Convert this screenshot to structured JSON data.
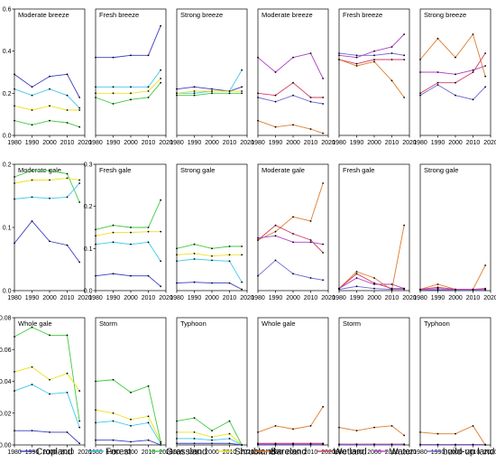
{
  "figure": {
    "x_ticks": [
      "1980",
      "1990",
      "2000",
      "2010",
      "2020"
    ],
    "colors": {
      "Cropland": "#3b3bc4",
      "Forest": "#3cc8f0",
      "Grassland": "#3ecb3e",
      "Shrubland": "#f0e020",
      "Bareland": "#e07b2a",
      "Wetland": "#d43c60",
      "Water": "#b040c8",
      "build-up land": "#6a6adc"
    },
    "legend": [
      {
        "label": "Cropland",
        "color": "#3b3bc4"
      },
      {
        "label": "Forest",
        "color": "#3cc8f0"
      },
      {
        "label": "Grassland",
        "color": "#3ecb3e"
      },
      {
        "label": "Shrubland",
        "color": "#f0e020"
      },
      {
        "label": "Bareland",
        "color": "#e07b2a"
      },
      {
        "label": "Wetland",
        "color": "#d43c60"
      },
      {
        "label": "Water",
        "color": "#b040c8"
      },
      {
        "label": "build-up land",
        "color": "#6a6adc"
      }
    ]
  },
  "chart_data": [
    {
      "type": "line",
      "title": "Moderate breeze",
      "ylim": [
        0,
        0.6
      ],
      "yticks": [
        "0.0",
        "0.2",
        "0.4",
        "0.6"
      ],
      "show_yticks": true,
      "x": [
        1980,
        1990,
        2000,
        2010,
        2017
      ],
      "series": [
        {
          "name": "Cropland",
          "values": [
            0.29,
            0.23,
            0.28,
            0.29,
            0.18
          ]
        },
        {
          "name": "Forest",
          "values": [
            0.22,
            0.19,
            0.22,
            0.19,
            0.13
          ]
        },
        {
          "name": "Shrubland",
          "values": [
            0.14,
            0.12,
            0.14,
            0.12,
            0.12
          ]
        },
        {
          "name": "Grassland",
          "values": [
            0.07,
            0.05,
            0.07,
            0.06,
            0.04
          ]
        }
      ]
    },
    {
      "type": "line",
      "title": "Fresh breeze",
      "ylim": [
        0,
        0.6
      ],
      "yticks": [],
      "show_yticks": false,
      "x": [
        1980,
        1990,
        2000,
        2010,
        2017
      ],
      "series": [
        {
          "name": "Cropland",
          "values": [
            0.37,
            0.37,
            0.38,
            0.38,
            0.52
          ]
        },
        {
          "name": "Forest",
          "values": [
            0.23,
            0.23,
            0.23,
            0.23,
            0.31
          ]
        },
        {
          "name": "Shrubland",
          "values": [
            0.2,
            0.2,
            0.2,
            0.21,
            0.27
          ]
        },
        {
          "name": "Grassland",
          "values": [
            0.18,
            0.15,
            0.17,
            0.18,
            0.25
          ]
        }
      ]
    },
    {
      "type": "line",
      "title": "Strong breeze",
      "ylim": [
        0,
        0.6
      ],
      "yticks": [],
      "show_yticks": false,
      "x": [
        1980,
        1990,
        2000,
        2010,
        2017
      ],
      "series": [
        {
          "name": "Cropland",
          "values": [
            0.22,
            0.23,
            0.22,
            0.21,
            0.23
          ]
        },
        {
          "name": "Forest",
          "values": [
            0.2,
            0.2,
            0.21,
            0.21,
            0.31
          ]
        },
        {
          "name": "Shrubland",
          "values": [
            0.2,
            0.21,
            0.21,
            0.21,
            0.21
          ]
        },
        {
          "name": "Grassland",
          "values": [
            0.19,
            0.19,
            0.2,
            0.2,
            0.2
          ]
        }
      ]
    },
    {
      "type": "line",
      "title": "Moderate breeze",
      "ylim": [
        0,
        0.6
      ],
      "yticks": [],
      "show_yticks": false,
      "x": [
        1980,
        1990,
        2000,
        2010,
        2017
      ],
      "series": [
        {
          "name": "Water",
          "values": [
            0.37,
            0.3,
            0.37,
            0.39,
            0.27
          ]
        },
        {
          "name": "Wetland",
          "values": [
            0.2,
            0.19,
            0.25,
            0.18,
            0.18
          ]
        },
        {
          "name": "build-up land",
          "values": [
            0.18,
            0.16,
            0.19,
            0.16,
            0.15
          ]
        },
        {
          "name": "Bareland",
          "values": [
            0.07,
            0.04,
            0.05,
            0.03,
            0.01
          ]
        }
      ]
    },
    {
      "type": "line",
      "title": "Fresh breeze",
      "ylim": [
        0,
        0.6
      ],
      "yticks": [],
      "show_yticks": false,
      "x": [
        1980,
        1990,
        2000,
        2010,
        2017
      ],
      "series": [
        {
          "name": "Water",
          "values": [
            0.38,
            0.37,
            0.4,
            0.42,
            0.48
          ]
        },
        {
          "name": "build-up land",
          "values": [
            0.39,
            0.38,
            0.38,
            0.39,
            0.38
          ]
        },
        {
          "name": "Wetland",
          "values": [
            0.36,
            0.34,
            0.36,
            0.36,
            0.36
          ]
        },
        {
          "name": "Bareland",
          "values": [
            0.36,
            0.33,
            0.35,
            0.26,
            0.18
          ]
        }
      ]
    },
    {
      "type": "line",
      "title": "Strong breeze",
      "ylim": [
        0,
        0.6
      ],
      "yticks": [],
      "show_yticks": false,
      "x": [
        1980,
        1990,
        2000,
        2010,
        2017
      ],
      "series": [
        {
          "name": "Bareland",
          "values": [
            0.36,
            0.46,
            0.37,
            0.48,
            0.28
          ]
        },
        {
          "name": "Water",
          "values": [
            0.3,
            0.3,
            0.29,
            0.31,
            0.33
          ]
        },
        {
          "name": "Wetland",
          "values": [
            0.2,
            0.25,
            0.25,
            0.3,
            0.39
          ]
        },
        {
          "name": "build-up land",
          "values": [
            0.19,
            0.24,
            0.19,
            0.17,
            0.23
          ]
        }
      ]
    },
    {
      "type": "line",
      "title": "Moderate gale",
      "ylim": [
        0,
        0.2
      ],
      "yticks": [
        "0.0",
        "0.1",
        "0.2"
      ],
      "show_yticks": true,
      "x": [
        1980,
        1990,
        2000,
        2010,
        2017
      ],
      "series": [
        {
          "name": "Grassland",
          "values": [
            0.18,
            0.19,
            0.19,
            0.185,
            0.14
          ]
        },
        {
          "name": "Shrubland",
          "values": [
            0.17,
            0.175,
            0.175,
            0.178,
            0.175
          ]
        },
        {
          "name": "Forest",
          "values": [
            0.145,
            0.148,
            0.146,
            0.148,
            0.17
          ]
        },
        {
          "name": "Cropland",
          "values": [
            0.075,
            0.11,
            0.078,
            0.072,
            0.045
          ]
        }
      ]
    },
    {
      "type": "line",
      "title": "Fresh gale",
      "ylim": [
        0,
        0.3
      ],
      "yticks": [
        "0.0",
        "0.1",
        "0.2",
        "0.3"
      ],
      "show_yticks": true,
      "x": [
        1980,
        1990,
        2000,
        2010,
        2017
      ],
      "series": [
        {
          "name": "Grassland",
          "values": [
            0.145,
            0.155,
            0.15,
            0.15,
            0.215
          ]
        },
        {
          "name": "Shrubland",
          "values": [
            0.13,
            0.138,
            0.138,
            0.14,
            0.14
          ]
        },
        {
          "name": "Forest",
          "values": [
            0.11,
            0.115,
            0.11,
            0.115,
            0.07
          ]
        },
        {
          "name": "Cropland",
          "values": [
            0.035,
            0.04,
            0.035,
            0.035,
            0.01
          ]
        }
      ]
    },
    {
      "type": "line",
      "title": "Strong gale",
      "ylim": [
        0,
        0.3
      ],
      "yticks": [],
      "show_yticks": false,
      "x": [
        1980,
        1990,
        2000,
        2010,
        2017
      ],
      "series": [
        {
          "name": "Grassland",
          "values": [
            0.1,
            0.11,
            0.1,
            0.105,
            0.105
          ]
        },
        {
          "name": "Shrubland",
          "values": [
            0.085,
            0.088,
            0.082,
            0.085,
            0.085
          ]
        },
        {
          "name": "Forest",
          "values": [
            0.07,
            0.075,
            0.072,
            0.07,
            0.02
          ]
        },
        {
          "name": "Cropland",
          "values": [
            0.018,
            0.02,
            0.018,
            0.018,
            0.003
          ]
        }
      ]
    },
    {
      "type": "line",
      "title": "Moderate gale",
      "ylim": [
        0,
        0.3
      ],
      "yticks": [],
      "show_yticks": false,
      "x": [
        1980,
        1990,
        2000,
        2010,
        2017
      ],
      "series": [
        {
          "name": "Bareland",
          "values": [
            0.12,
            0.14,
            0.175,
            0.165,
            0.255
          ]
        },
        {
          "name": "Wetland",
          "values": [
            0.12,
            0.155,
            0.135,
            0.12,
            0.09
          ]
        },
        {
          "name": "Water",
          "values": [
            0.125,
            0.13,
            0.115,
            0.115,
            0.11
          ]
        },
        {
          "name": "build-up land",
          "values": [
            0.035,
            0.072,
            0.04,
            0.03,
            0.025
          ]
        }
      ]
    },
    {
      "type": "line",
      "title": "Fresh gale",
      "ylim": [
        0,
        0.3
      ],
      "yticks": [],
      "show_yticks": false,
      "x": [
        1980,
        1990,
        2000,
        2010,
        2017
      ],
      "series": [
        {
          "name": "Bareland",
          "values": [
            0.005,
            0.045,
            0.03,
            0.002,
            0.155
          ]
        },
        {
          "name": "Wetland",
          "values": [
            0.005,
            0.04,
            0.018,
            0.005,
            0.005
          ]
        },
        {
          "name": "Water",
          "values": [
            0.005,
            0.03,
            0.015,
            0.015,
            0.005
          ]
        },
        {
          "name": "build-up land",
          "values": [
            0.003,
            0.01,
            0.005,
            0.003,
            0.003
          ]
        }
      ]
    },
    {
      "type": "line",
      "title": "Strong gale",
      "ylim": [
        0,
        0.3
      ],
      "yticks": [],
      "show_yticks": false,
      "x": [
        1980,
        1990,
        2000,
        2010,
        2017
      ],
      "series": [
        {
          "name": "Bareland",
          "values": [
            0.003,
            0.015,
            0.003,
            0.003,
            0.06
          ]
        },
        {
          "name": "Wetland",
          "values": [
            0.003,
            0.008,
            0.003,
            0.003,
            0.005
          ]
        },
        {
          "name": "Water",
          "values": [
            0.002,
            0.005,
            0.002,
            0.002,
            0.003
          ]
        },
        {
          "name": "build-up land",
          "values": [
            0.001,
            0.002,
            0.001,
            0.001,
            0.001
          ]
        }
      ]
    },
    {
      "type": "line",
      "title": "Whole gale",
      "ylim": [
        0,
        0.08
      ],
      "yticks": [
        "0.00",
        "0.02",
        "0.04",
        "0.06",
        "0.08"
      ],
      "show_yticks": true,
      "x": [
        1980,
        1990,
        2000,
        2010,
        2017
      ],
      "series": [
        {
          "name": "Grassland",
          "values": [
            0.068,
            0.074,
            0.069,
            0.069,
            0.015
          ]
        },
        {
          "name": "Shrubland",
          "values": [
            0.046,
            0.049,
            0.041,
            0.045,
            0.034
          ]
        },
        {
          "name": "Forest",
          "values": [
            0.034,
            0.038,
            0.032,
            0.033,
            0.011
          ]
        },
        {
          "name": "Cropland",
          "values": [
            0.009,
            0.009,
            0.008,
            0.008,
            0.001
          ]
        }
      ]
    },
    {
      "type": "line",
      "title": "Storm",
      "ylim": [
        0,
        0.08
      ],
      "yticks": [],
      "show_yticks": false,
      "x": [
        1980,
        1990,
        2000,
        2010,
        2017
      ],
      "series": [
        {
          "name": "Grassland",
          "values": [
            0.04,
            0.041,
            0.033,
            0.037,
            0.002
          ]
        },
        {
          "name": "Shrubland",
          "values": [
            0.022,
            0.02,
            0.016,
            0.018,
            0.002
          ]
        },
        {
          "name": "Forest",
          "values": [
            0.014,
            0.015,
            0.012,
            0.014,
            0.001
          ]
        },
        {
          "name": "Cropland",
          "values": [
            0.003,
            0.003,
            0.002,
            0.003,
            0.0
          ]
        }
      ]
    },
    {
      "type": "line",
      "title": "Typhoon",
      "ylim": [
        0,
        0.08
      ],
      "yticks": [],
      "show_yticks": false,
      "x": [
        1980,
        1990,
        2000,
        2010,
        2017
      ],
      "series": [
        {
          "name": "Grassland",
          "values": [
            0.015,
            0.017,
            0.009,
            0.015,
            0.0
          ]
        },
        {
          "name": "Shrubland",
          "values": [
            0.008,
            0.008,
            0.005,
            0.007,
            0.0
          ]
        },
        {
          "name": "Forest",
          "values": [
            0.004,
            0.004,
            0.003,
            0.004,
            0.0
          ]
        },
        {
          "name": "Cropland",
          "values": [
            0.001,
            0.001,
            0.001,
            0.001,
            0.0
          ]
        }
      ]
    },
    {
      "type": "line",
      "title": "Whole gale",
      "ylim": [
        0,
        0.08
      ],
      "yticks": [],
      "show_yticks": false,
      "x": [
        1980,
        1990,
        2000,
        2010,
        2017
      ],
      "series": [
        {
          "name": "Bareland",
          "values": [
            0.008,
            0.012,
            0.01,
            0.012,
            0.024
          ]
        },
        {
          "name": "Wetland",
          "values": [
            0.001,
            0.001,
            0.001,
            0.001,
            0.001
          ]
        },
        {
          "name": "Water",
          "values": [
            0.0005,
            0.0005,
            0.0005,
            0.0005,
            0.0005
          ]
        },
        {
          "name": "build-up land",
          "values": [
            0.0002,
            0.0002,
            0.0002,
            0.0002,
            0.0002
          ]
        }
      ]
    },
    {
      "type": "line",
      "title": "Storm",
      "ylim": [
        0,
        0.08
      ],
      "yticks": [],
      "show_yticks": false,
      "x": [
        1980,
        1990,
        2000,
        2010,
        2017
      ],
      "series": [
        {
          "name": "Bareland",
          "values": [
            0.011,
            0.009,
            0.011,
            0.012,
            0.006
          ]
        },
        {
          "name": "Wetland",
          "values": [
            0.0005,
            0.0005,
            0.0005,
            0.0005,
            0.0005
          ]
        },
        {
          "name": "Water",
          "values": [
            0.0002,
            0.0002,
            0.0002,
            0.0002,
            0.0002
          ]
        },
        {
          "name": "build-up land",
          "values": [
            0.0001,
            0.0001,
            0.0001,
            0.0001,
            0.0001
          ]
        }
      ]
    },
    {
      "type": "line",
      "title": "Typhoon",
      "ylim": [
        0,
        0.08
      ],
      "yticks": [],
      "show_yticks": false,
      "x": [
        1980,
        1990,
        2000,
        2010,
        2017
      ],
      "series": [
        {
          "name": "Bareland",
          "values": [
            0.008,
            0.007,
            0.007,
            0.012,
            0.0
          ]
        },
        {
          "name": "Wetland",
          "values": [
            0.0003,
            0.0003,
            0.0003,
            0.0003,
            0.0003
          ]
        },
        {
          "name": "Water",
          "values": [
            0.0002,
            0.0002,
            0.0002,
            0.0002,
            0.0002
          ]
        },
        {
          "name": "build-up land",
          "values": [
            0.0001,
            0.0001,
            0.0001,
            0.0001,
            0.0001
          ]
        }
      ]
    }
  ]
}
